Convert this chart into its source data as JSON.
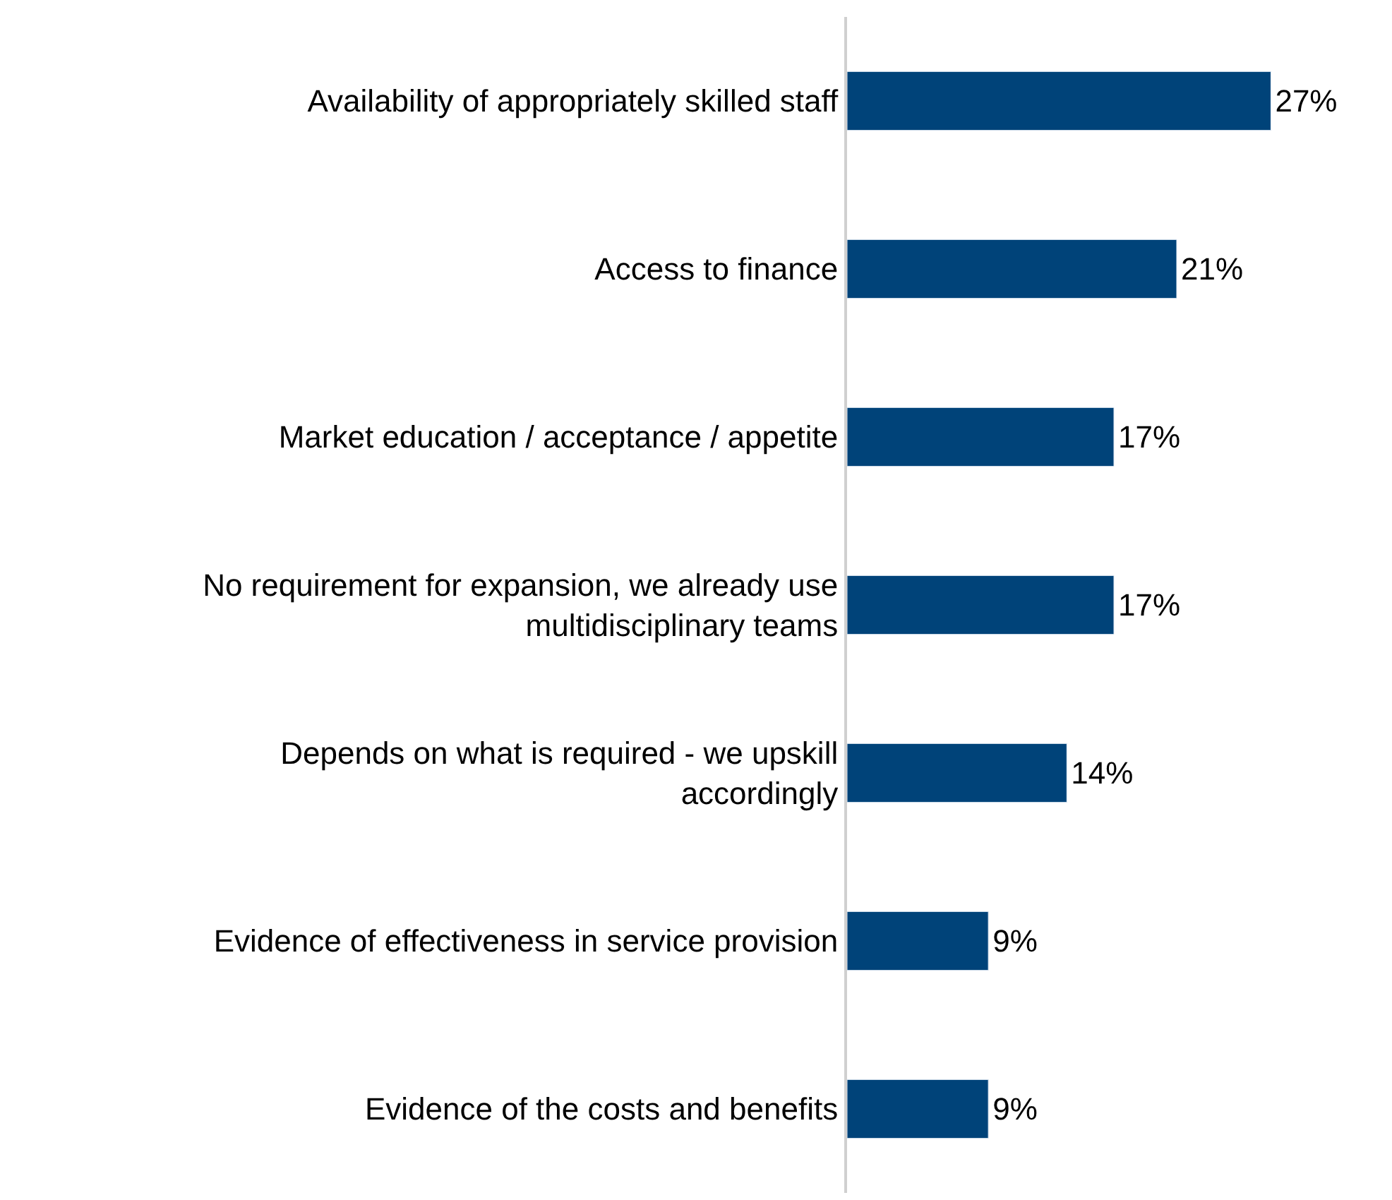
{
  "chart_data": {
    "type": "bar",
    "orientation": "horizontal",
    "categories": [
      "Availability of appropriately skilled staff",
      "Access to finance",
      "Market education / acceptance / appetite",
      "No requirement for expansion, we already use\nmultidisciplinary teams",
      "Depends on what is required - we upskill\naccordingly",
      "Evidence of effectiveness in service provision",
      "Evidence of the costs and benefits"
    ],
    "values": [
      27,
      21,
      17,
      17,
      14,
      9,
      9
    ],
    "value_labels": [
      "27%",
      "21%",
      "17%",
      "17%",
      "14%",
      "9%",
      "9%"
    ],
    "color": "#004379",
    "legend": false,
    "tick_labels": "y"
  }
}
